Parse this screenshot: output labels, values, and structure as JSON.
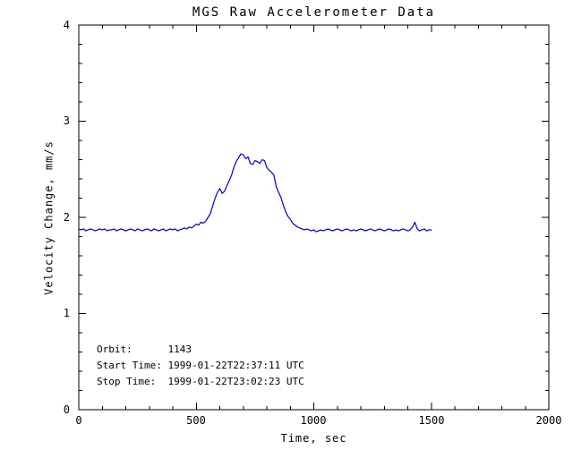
{
  "chart_data": {
    "type": "line",
    "title": "MGS Raw Accelerometer Data",
    "xlabel": "Time, sec",
    "ylabel": "Velocity Change, mm/s",
    "xlim": [
      0,
      2000
    ],
    "ylim": [
      0,
      4
    ],
    "xticks": [
      0,
      500,
      1000,
      1500,
      2000
    ],
    "yticks": [
      0,
      1,
      2,
      3,
      4
    ],
    "xtick_labels": [
      "0",
      "500",
      "1000",
      "1500",
      "2000"
    ],
    "ytick_labels": [
      "0",
      "1",
      "2",
      "3",
      "4"
    ],
    "x_minor_step": 100,
    "y_minor_step": 0.2,
    "grid": false,
    "legend": "none",
    "axis_color": "#000000",
    "line_color": "#0000cc",
    "annotations": [
      "Orbit:      1143",
      "Start Time: 1999-01-22T22:37:11 UTC",
      "Stop Time:  1999-01-22T23:02:23 UTC"
    ],
    "series": [
      {
        "name": "velocity-change",
        "points": [
          [
            0,
            1.88
          ],
          [
            10,
            1.87
          ],
          [
            20,
            1.88
          ],
          [
            30,
            1.86
          ],
          [
            40,
            1.87
          ],
          [
            50,
            1.88
          ],
          [
            60,
            1.87
          ],
          [
            70,
            1.86
          ],
          [
            80,
            1.87
          ],
          [
            90,
            1.88
          ],
          [
            100,
            1.87
          ],
          [
            110,
            1.88
          ],
          [
            120,
            1.86
          ],
          [
            130,
            1.87
          ],
          [
            140,
            1.87
          ],
          [
            150,
            1.88
          ],
          [
            160,
            1.86
          ],
          [
            170,
            1.87
          ],
          [
            180,
            1.88
          ],
          [
            190,
            1.87
          ],
          [
            200,
            1.86
          ],
          [
            210,
            1.87
          ],
          [
            220,
            1.88
          ],
          [
            230,
            1.87
          ],
          [
            240,
            1.86
          ],
          [
            250,
            1.88
          ],
          [
            260,
            1.87
          ],
          [
            270,
            1.86
          ],
          [
            280,
            1.87
          ],
          [
            290,
            1.88
          ],
          [
            300,
            1.87
          ],
          [
            310,
            1.86
          ],
          [
            320,
            1.88
          ],
          [
            330,
            1.87
          ],
          [
            340,
            1.86
          ],
          [
            350,
            1.87
          ],
          [
            360,
            1.88
          ],
          [
            370,
            1.86
          ],
          [
            380,
            1.87
          ],
          [
            390,
            1.88
          ],
          [
            400,
            1.87
          ],
          [
            410,
            1.88
          ],
          [
            420,
            1.86
          ],
          [
            430,
            1.87
          ],
          [
            440,
            1.88
          ],
          [
            450,
            1.89
          ],
          [
            460,
            1.88
          ],
          [
            470,
            1.9
          ],
          [
            480,
            1.89
          ],
          [
            490,
            1.91
          ],
          [
            500,
            1.93
          ],
          [
            510,
            1.92
          ],
          [
            520,
            1.95
          ],
          [
            530,
            1.94
          ],
          [
            540,
            1.96
          ],
          [
            550,
            2.0
          ],
          [
            560,
            2.04
          ],
          [
            570,
            2.12
          ],
          [
            580,
            2.2
          ],
          [
            590,
            2.26
          ],
          [
            600,
            2.3
          ],
          [
            610,
            2.25
          ],
          [
            620,
            2.27
          ],
          [
            630,
            2.33
          ],
          [
            640,
            2.38
          ],
          [
            650,
            2.44
          ],
          [
            660,
            2.52
          ],
          [
            670,
            2.58
          ],
          [
            680,
            2.62
          ],
          [
            690,
            2.66
          ],
          [
            700,
            2.65
          ],
          [
            710,
            2.61
          ],
          [
            720,
            2.63
          ],
          [
            730,
            2.56
          ],
          [
            740,
            2.55
          ],
          [
            750,
            2.59
          ],
          [
            760,
            2.58
          ],
          [
            770,
            2.56
          ],
          [
            780,
            2.6
          ],
          [
            790,
            2.59
          ],
          [
            800,
            2.52
          ],
          [
            810,
            2.49
          ],
          [
            820,
            2.47
          ],
          [
            830,
            2.44
          ],
          [
            840,
            2.32
          ],
          [
            850,
            2.26
          ],
          [
            860,
            2.21
          ],
          [
            870,
            2.13
          ],
          [
            880,
            2.06
          ],
          [
            890,
            2.01
          ],
          [
            900,
            1.98
          ],
          [
            910,
            1.94
          ],
          [
            920,
            1.92
          ],
          [
            930,
            1.9
          ],
          [
            940,
            1.89
          ],
          [
            950,
            1.88
          ],
          [
            960,
            1.87
          ],
          [
            970,
            1.88
          ],
          [
            980,
            1.87
          ],
          [
            990,
            1.86
          ],
          [
            1000,
            1.87
          ],
          [
            1010,
            1.85
          ],
          [
            1020,
            1.86
          ],
          [
            1030,
            1.87
          ],
          [
            1040,
            1.86
          ],
          [
            1050,
            1.87
          ],
          [
            1060,
            1.88
          ],
          [
            1070,
            1.87
          ],
          [
            1080,
            1.86
          ],
          [
            1090,
            1.87
          ],
          [
            1100,
            1.88
          ],
          [
            1110,
            1.87
          ],
          [
            1120,
            1.86
          ],
          [
            1130,
            1.87
          ],
          [
            1140,
            1.88
          ],
          [
            1150,
            1.87
          ],
          [
            1160,
            1.86
          ],
          [
            1170,
            1.87
          ],
          [
            1180,
            1.86
          ],
          [
            1190,
            1.87
          ],
          [
            1200,
            1.88
          ],
          [
            1210,
            1.87
          ],
          [
            1220,
            1.86
          ],
          [
            1230,
            1.87
          ],
          [
            1240,
            1.88
          ],
          [
            1250,
            1.87
          ],
          [
            1260,
            1.86
          ],
          [
            1270,
            1.87
          ],
          [
            1280,
            1.88
          ],
          [
            1290,
            1.87
          ],
          [
            1300,
            1.86
          ],
          [
            1310,
            1.87
          ],
          [
            1320,
            1.88
          ],
          [
            1330,
            1.87
          ],
          [
            1340,
            1.86
          ],
          [
            1350,
            1.87
          ],
          [
            1360,
            1.86
          ],
          [
            1370,
            1.87
          ],
          [
            1380,
            1.88
          ],
          [
            1390,
            1.87
          ],
          [
            1400,
            1.86
          ],
          [
            1410,
            1.87
          ],
          [
            1420,
            1.9
          ],
          [
            1430,
            1.95
          ],
          [
            1440,
            1.88
          ],
          [
            1450,
            1.86
          ],
          [
            1460,
            1.87
          ],
          [
            1470,
            1.88
          ],
          [
            1480,
            1.86
          ],
          [
            1490,
            1.87
          ],
          [
            1500,
            1.87
          ]
        ]
      }
    ]
  }
}
